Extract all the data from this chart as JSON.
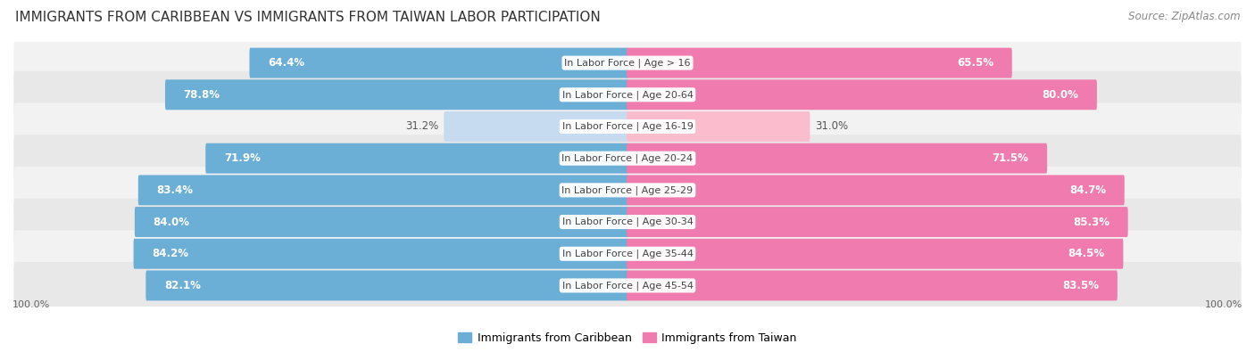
{
  "title": "IMMIGRANTS FROM CARIBBEAN VS IMMIGRANTS FROM TAIWAN LABOR PARTICIPATION",
  "source": "Source: ZipAtlas.com",
  "categories": [
    "In Labor Force | Age > 16",
    "In Labor Force | Age 20-64",
    "In Labor Force | Age 16-19",
    "In Labor Force | Age 20-24",
    "In Labor Force | Age 25-29",
    "In Labor Force | Age 30-34",
    "In Labor Force | Age 35-44",
    "In Labor Force | Age 45-54"
  ],
  "caribbean_values": [
    64.4,
    78.8,
    31.2,
    71.9,
    83.4,
    84.0,
    84.2,
    82.1
  ],
  "taiwan_values": [
    65.5,
    80.0,
    31.0,
    71.5,
    84.7,
    85.3,
    84.5,
    83.5
  ],
  "caribbean_color": "#6BAED6",
  "taiwan_color": "#F07BAE",
  "caribbean_light_color": "#C6DBEF",
  "taiwan_light_color": "#FBBCCE",
  "row_bg_even": "#F2F2F2",
  "row_bg_odd": "#E8E8E8",
  "label_white": "#FFFFFF",
  "label_dark": "#555555",
  "legend_caribbean": "Immigrants from Caribbean",
  "legend_taiwan": "Immigrants from Taiwan",
  "title_fontsize": 11,
  "source_fontsize": 8.5,
  "value_fontsize": 8.5,
  "category_fontsize": 8,
  "legend_fontsize": 9,
  "max_value": 100.0,
  "bar_height": 0.65,
  "small_threshold": 40,
  "background_color": "#FFFFFF"
}
